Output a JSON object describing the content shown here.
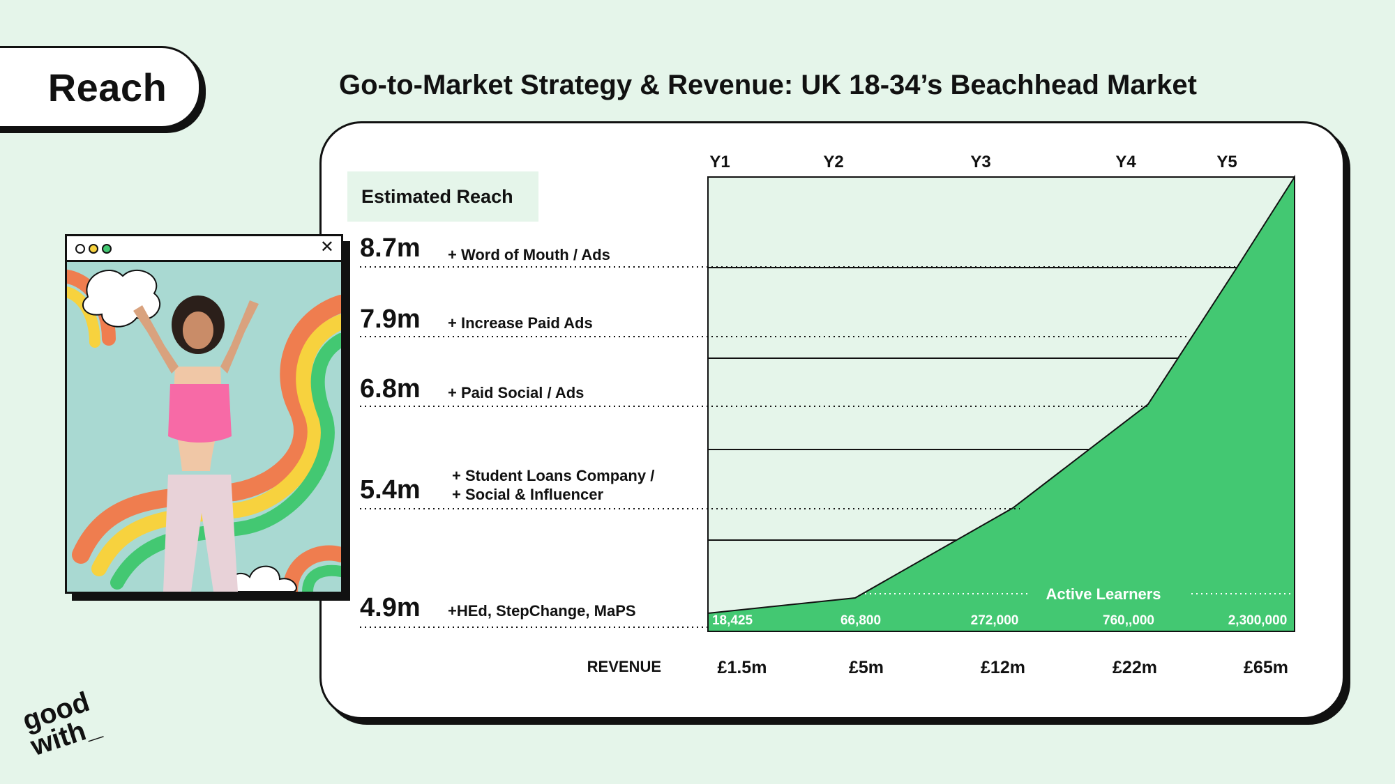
{
  "header": {
    "tab_label": "Reach",
    "title": "Go-to-Market Strategy & Revenue: UK 18-34’s Beachhead Market"
  },
  "reach_header": "Estimated Reach",
  "logo": {
    "line1": "good",
    "line2": "with_"
  },
  "colors": {
    "background": "#e5f5ea",
    "fill": "#43c872",
    "text": "#111111"
  },
  "chart_data": {
    "type": "area",
    "years": [
      "Y1",
      "Y2",
      "Y3",
      "Y4",
      "Y5"
    ],
    "reach_levels": [
      {
        "value": "8.7m",
        "label": "+ Word of Mouth / Ads"
      },
      {
        "value": "7.9m",
        "label": "+ Increase Paid Ads"
      },
      {
        "value": "6.8m",
        "label": "+ Paid Social / Ads"
      },
      {
        "value": "5.4m",
        "label": [
          "+ Student Loans Company /",
          "+ Social & Influencer"
        ]
      },
      {
        "value": "4.9m",
        "label": "+HEd, StepChange, MaPS"
      }
    ],
    "series": [
      {
        "name": "Active Learners",
        "labels": [
          "18,425",
          "66,800",
          "272,000",
          "760,,000",
          "2,300,000"
        ]
      }
    ],
    "revenue_label": "REVENUE",
    "revenue": [
      "£1.5m",
      "£5m",
      "£12m",
      "£22m",
      "£65m"
    ]
  }
}
